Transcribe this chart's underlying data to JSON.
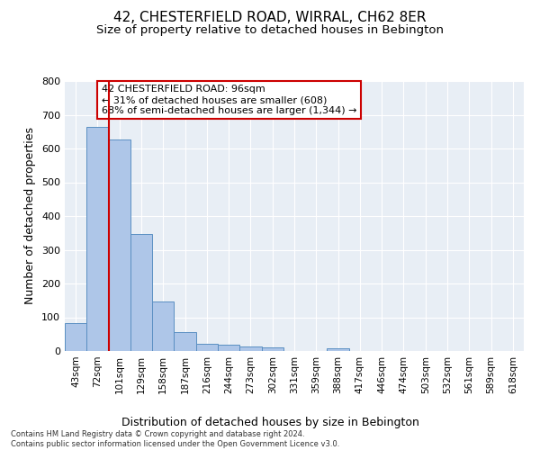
{
  "title1": "42, CHESTERFIELD ROAD, WIRRAL, CH62 8ER",
  "title2": "Size of property relative to detached houses in Bebington",
  "xlabel": "Distribution of detached houses by size in Bebington",
  "ylabel": "Number of detached properties",
  "footnote": "Contains HM Land Registry data © Crown copyright and database right 2024.\nContains public sector information licensed under the Open Government Licence v3.0.",
  "bar_labels": [
    "43sqm",
    "72sqm",
    "101sqm",
    "129sqm",
    "158sqm",
    "187sqm",
    "216sqm",
    "244sqm",
    "273sqm",
    "302sqm",
    "331sqm",
    "359sqm",
    "388sqm",
    "417sqm",
    "446sqm",
    "474sqm",
    "503sqm",
    "532sqm",
    "561sqm",
    "589sqm",
    "618sqm"
  ],
  "bar_values": [
    83,
    663,
    628,
    347,
    147,
    57,
    22,
    18,
    14,
    10,
    0,
    0,
    8,
    0,
    0,
    0,
    0,
    0,
    0,
    0,
    0
  ],
  "bar_color": "#aec6e8",
  "bar_edge_color": "#5a8fc2",
  "vline_x_data": 1.5,
  "vline_color": "#cc0000",
  "annotation_text": "42 CHESTERFIELD ROAD: 96sqm\n← 31% of detached houses are smaller (608)\n68% of semi-detached houses are larger (1,344) →",
  "annotation_box_color": "#ffffff",
  "annotation_box_edge": "#cc0000",
  "ylim": [
    0,
    800
  ],
  "yticks": [
    0,
    100,
    200,
    300,
    400,
    500,
    600,
    700,
    800
  ],
  "background_color": "#e8eef5",
  "grid_color": "#ffffff",
  "title1_fontsize": 11,
  "title2_fontsize": 9.5,
  "xlabel_fontsize": 9,
  "ylabel_fontsize": 9
}
